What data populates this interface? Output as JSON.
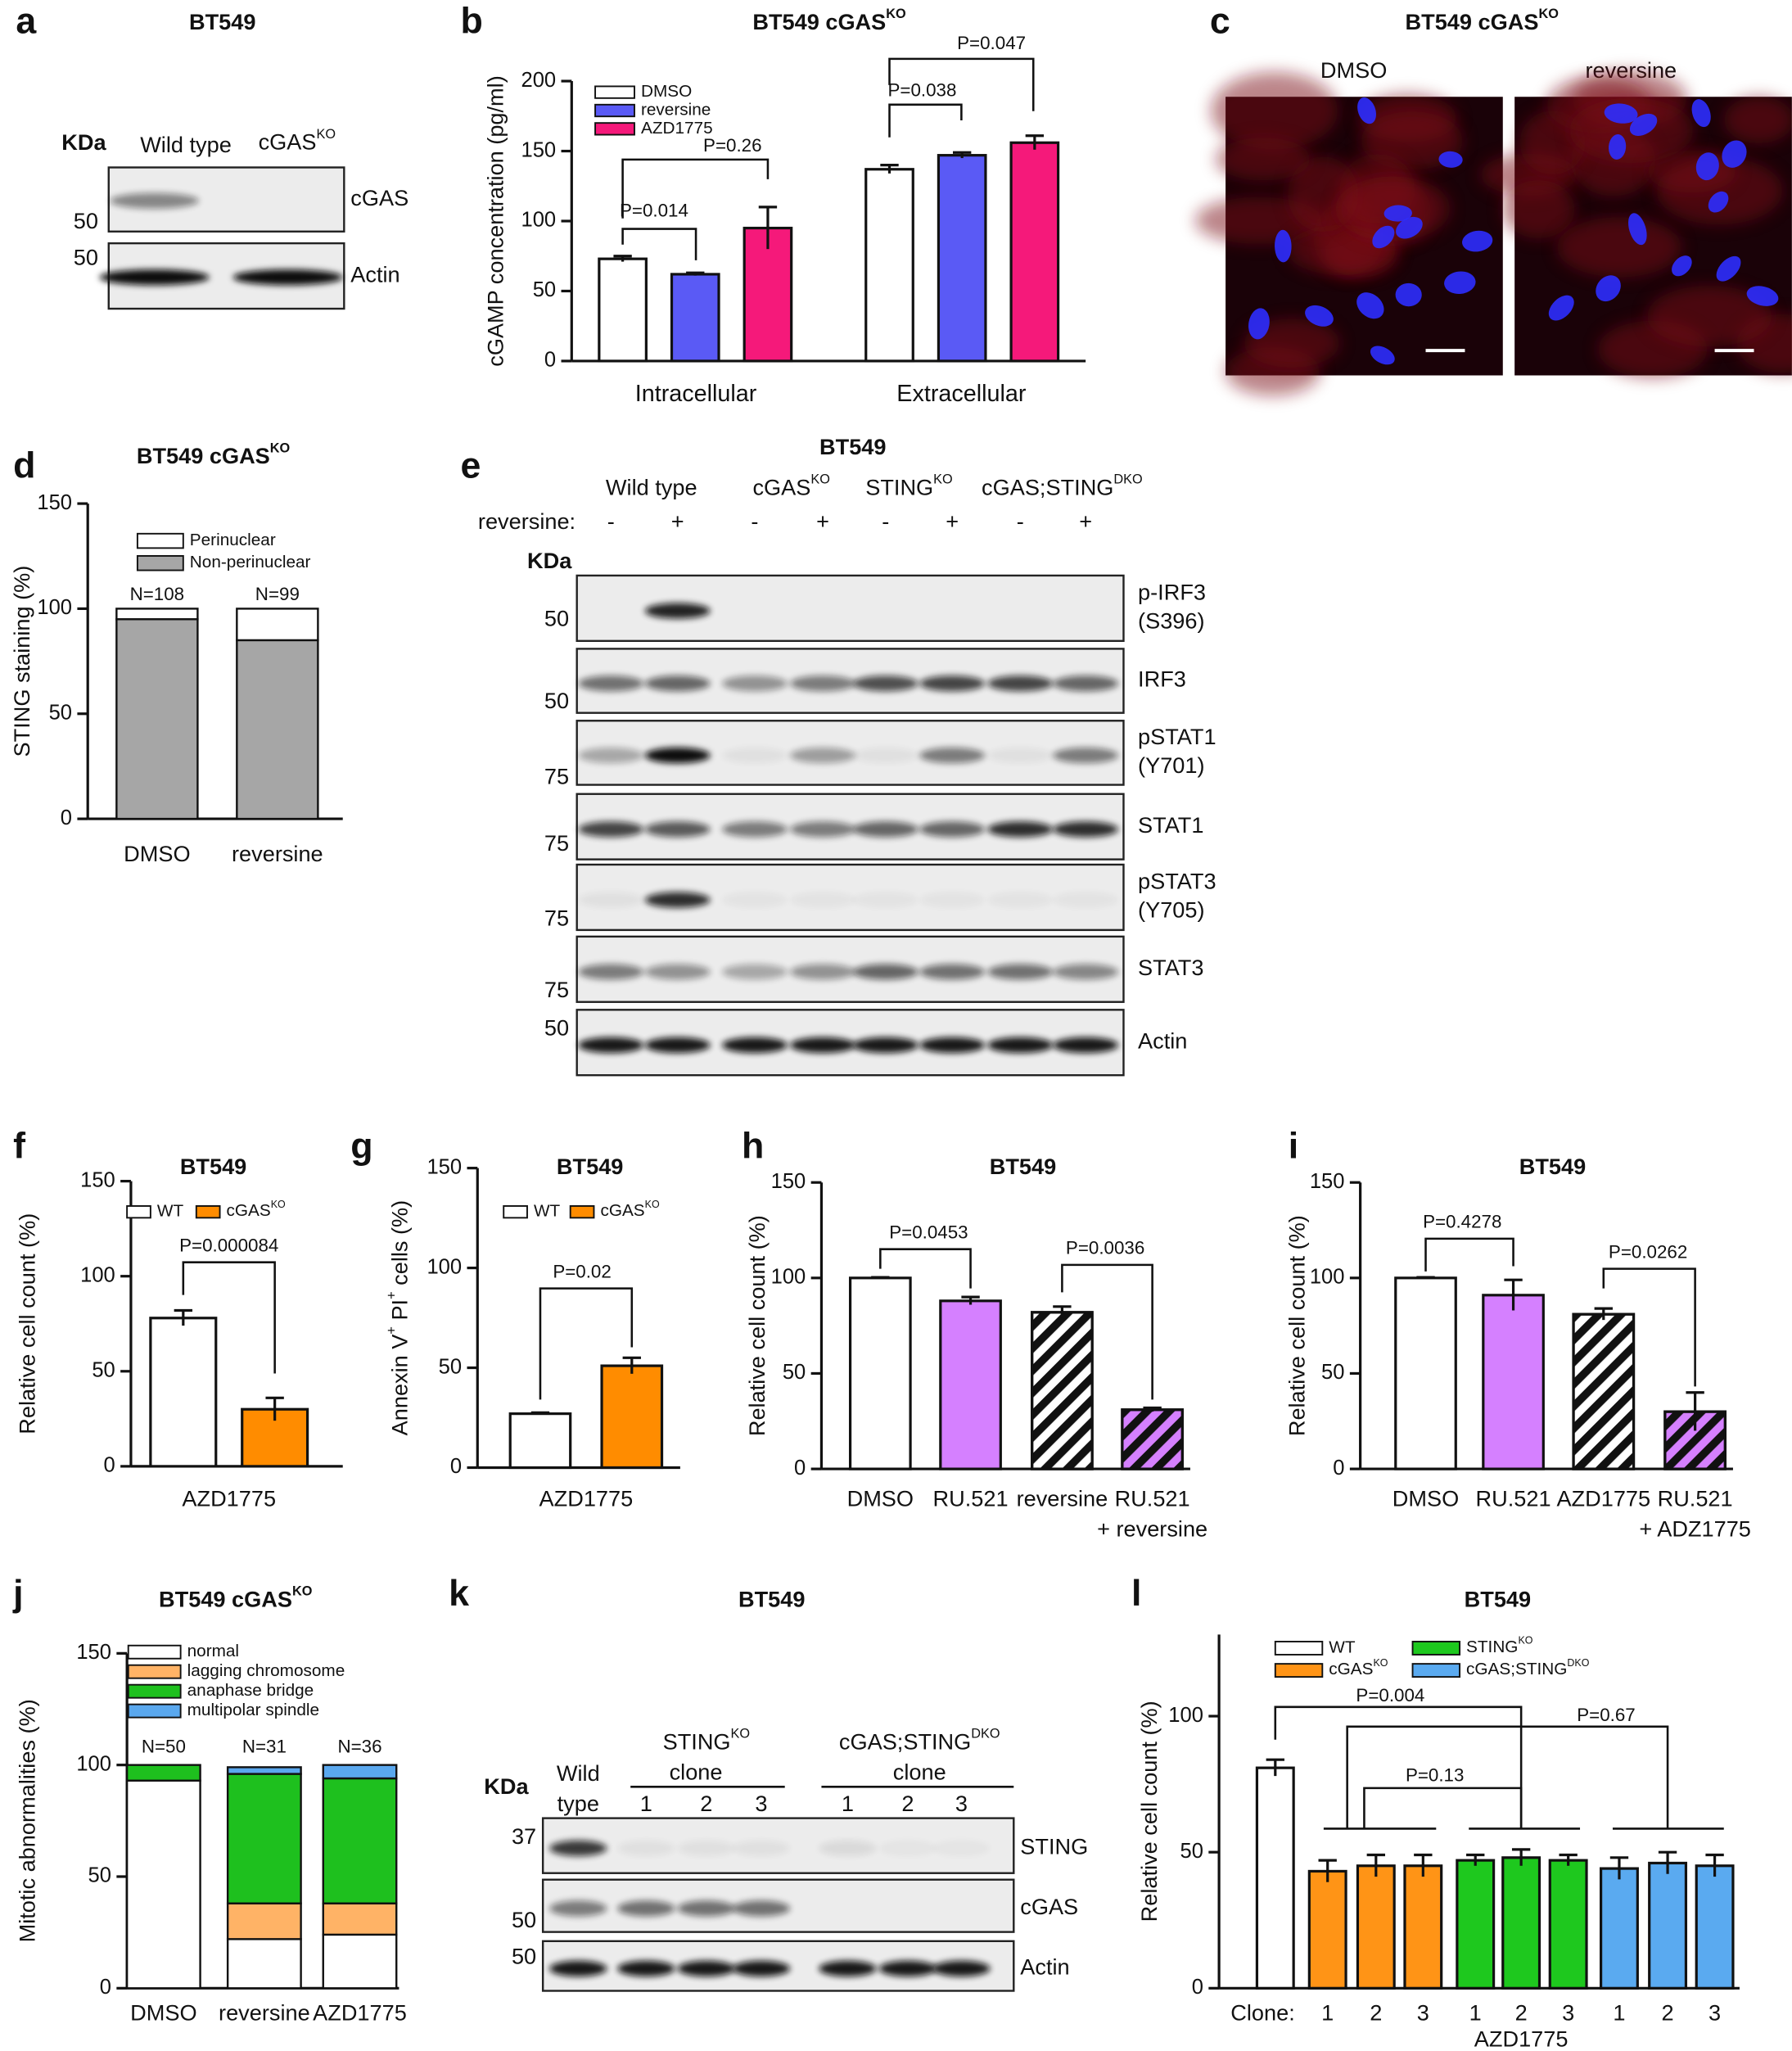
{
  "panel_labels": [
    "a",
    "b",
    "c",
    "d",
    "e",
    "f",
    "g",
    "h",
    "i",
    "j",
    "k",
    "l"
  ],
  "blots": [
    {
      "title": "BT549",
      "kda": "KDa",
      "lanes": [
        "Wild type",
        [
          "cGAS",
          "KO"
        ]
      ],
      "rows": [
        {
          "marker": "50",
          "label": [
            "cGAS"
          ]
        },
        {
          "marker": "50",
          "label": [
            "Actin"
          ]
        }
      ]
    },
    {
      "title": "BT549",
      "kda": "KDa",
      "treatment": "reversine:",
      "groups": [
        "Wild type",
        [
          "cGAS",
          "KO"
        ],
        [
          "STING",
          "KO"
        ],
        [
          "cGAS;STING",
          "DKO"
        ]
      ],
      "signs": [
        "-",
        "+",
        "-",
        "+",
        "-",
        "+",
        "-",
        "+"
      ],
      "rows": [
        {
          "marker": "50",
          "label": [
            "p-IRF3",
            "(S396)"
          ]
        },
        {
          "marker": "50",
          "label": [
            "IRF3"
          ]
        },
        {
          "marker": "75",
          "label": [
            "pSTAT1",
            "(Y701)"
          ]
        },
        {
          "marker": "75",
          "label": [
            "STAT1"
          ]
        },
        {
          "marker": "75",
          "label": [
            "pSTAT3",
            "(Y705)"
          ]
        },
        {
          "marker": "75",
          "label": [
            "STAT3"
          ]
        },
        {
          "marker": "50",
          "label": [
            "Actin"
          ]
        }
      ]
    },
    {
      "title": "BT549",
      "kda": "KDa",
      "wild": [
        "Wild",
        "type"
      ],
      "groups": [
        {
          "name": [
            "STING",
            "KO"
          ],
          "sub": "clone",
          "clones": [
            "1",
            "2",
            "3"
          ]
        },
        {
          "name": [
            "cGAS;STING",
            "DKO"
          ],
          "sub": "clone",
          "clones": [
            "1",
            "2",
            "3"
          ]
        }
      ],
      "rows": [
        {
          "marker": "37",
          "label": [
            "STING"
          ]
        },
        {
          "marker": "50",
          "label": [
            "cGAS"
          ]
        },
        {
          "marker": "50",
          "label": [
            "Actin"
          ]
        }
      ]
    }
  ],
  "images": {
    "title": [
      "BT549 cGAS",
      "KO"
    ],
    "panels": [
      "DMSO",
      "reversine"
    ]
  },
  "chart_data": [
    {
      "type": "bar",
      "title": [
        "BT549 cGAS",
        "KO"
      ],
      "ylabel": "cGAMP concentration (pg/ml)",
      "categories": [
        "Intracellular",
        "Extracellular"
      ],
      "series": [
        {
          "name": "DMSO",
          "color": "#ffffff",
          "values": [
            73,
            137
          ],
          "errors": [
            2,
            3
          ]
        },
        {
          "name": "reversine",
          "color": "#5a5af5",
          "values": [
            62,
            147
          ],
          "errors": [
            1,
            2
          ]
        },
        {
          "name": "AZD1775",
          "color": "#f5197a",
          "values": [
            95,
            156
          ],
          "errors": [
            15,
            5
          ]
        }
      ],
      "ylim": [
        0,
        200
      ],
      "yticks": [
        0,
        50,
        100,
        150,
        200
      ],
      "annotations": [
        "P=0.014",
        "P=0.26",
        "P=0.038",
        "P=0.047"
      ]
    },
    {
      "type": "stacked_bar",
      "title": [
        "BT549 cGAS",
        "KO"
      ],
      "ylabel": "STING staining (%)",
      "categories": [
        "DMSO",
        "reversine"
      ],
      "series": [
        {
          "name": "Non-perinuclear",
          "color": "#a6a6a6",
          "values": [
            95,
            85
          ]
        },
        {
          "name": "Perinuclear",
          "color": "#ffffff",
          "values": [
            5,
            15
          ]
        }
      ],
      "ylim": [
        0,
        150
      ],
      "yticks": [
        0,
        50,
        100,
        150
      ],
      "annotations": [
        "N=108",
        "N=99"
      ]
    },
    {
      "type": "bar",
      "title": "BT549",
      "ylabel": "Relative cell count (%)",
      "categories": [
        "AZD1775"
      ],
      "series": [
        {
          "name": "WT",
          "color": "#ffffff",
          "values": [
            78
          ],
          "errors": [
            4
          ]
        },
        {
          "name": [
            "cGAS",
            "KO"
          ],
          "color": "#ff8c00",
          "values": [
            30
          ],
          "errors": [
            6
          ]
        }
      ],
      "ylim": [
        0,
        150
      ],
      "yticks": [
        0,
        50,
        100,
        150
      ],
      "annotations": [
        "P=0.000084"
      ]
    },
    {
      "type": "bar",
      "title": "BT549",
      "ylabel": [
        "Annexin V",
        "+",
        " PI",
        "+",
        " cells (%)"
      ],
      "categories": [
        "AZD1775"
      ],
      "series": [
        {
          "name": "WT",
          "color": "#ffffff",
          "values": [
            27
          ],
          "errors": [
            0.5
          ]
        },
        {
          "name": [
            "cGAS",
            "KO"
          ],
          "color": "#ff8c00",
          "values": [
            51
          ],
          "errors": [
            4
          ]
        }
      ],
      "ylim": [
        0,
        150
      ],
      "yticks": [
        0,
        50,
        100,
        150
      ],
      "annotations": [
        "P=0.02"
      ]
    },
    {
      "type": "bar",
      "title": "BT549",
      "ylabel": "Relative cell count (%)",
      "categories": [
        "DMSO",
        "RU.521",
        "reversine",
        [
          "RU.521",
          "+ reversine"
        ]
      ],
      "values": [
        100,
        88,
        82,
        31
      ],
      "errors": [
        0.3,
        2,
        3,
        1
      ],
      "colors": [
        "#ffffff",
        "#d580ff",
        "#ffffff",
        "#d580ff"
      ],
      "hatch": [
        false,
        false,
        true,
        true
      ],
      "ylim": [
        0,
        150
      ],
      "yticks": [
        0,
        50,
        100,
        150
      ],
      "annotations": [
        "P=0.0453",
        "P=0.0036"
      ]
    },
    {
      "type": "bar",
      "title": "BT549",
      "ylabel": "Relative cell count (%)",
      "categories": [
        "DMSO",
        "RU.521",
        "AZD1775",
        [
          "RU.521",
          "+ ADZ1775"
        ]
      ],
      "values": [
        100,
        91,
        81,
        30
      ],
      "errors": [
        0.3,
        8,
        3,
        10
      ],
      "colors": [
        "#ffffff",
        "#d580ff",
        "#ffffff",
        "#d580ff"
      ],
      "hatch": [
        false,
        false,
        true,
        true
      ],
      "ylim": [
        0,
        150
      ],
      "yticks": [
        0,
        50,
        100,
        150
      ],
      "annotations": [
        "P=0.4278",
        "P=0.0262"
      ]
    },
    {
      "type": "stacked_bar",
      "title": [
        "BT549 cGAS",
        "KO"
      ],
      "ylabel": "Mitotic abnormalities (%)",
      "categories": [
        "DMSO",
        "reversine",
        "AZD1775"
      ],
      "series": [
        {
          "name": "normal",
          "color": "#ffffff",
          "values": [
            93,
            22,
            24
          ]
        },
        {
          "name": "lagging chromosome",
          "color": "#ffb366",
          "values": [
            0,
            16,
            14
          ]
        },
        {
          "name": "anaphase bridge",
          "color": "#1ec01e",
          "values": [
            7,
            58,
            56
          ]
        },
        {
          "name": "multipolar spindle",
          "color": "#5aa8ee",
          "values": [
            0,
            3,
            6
          ]
        }
      ],
      "ylim": [
        0,
        150
      ],
      "yticks": [
        0,
        50,
        100,
        150
      ],
      "annotations": [
        "N=50",
        "N=31",
        "N=36"
      ]
    },
    {
      "type": "bar",
      "title": "BT549",
      "ylabel": "Relative cell count (%)",
      "categories": [
        null,
        "1",
        "2",
        "3",
        "1",
        "2",
        "3",
        "1",
        "2",
        "3"
      ],
      "xlabel_prefix": "Clone:",
      "xlabel": "AZD1775",
      "series": [
        {
          "name": "WT",
          "color": "#ffffff",
          "values": [
            81,
            null,
            null,
            null,
            null,
            null,
            null,
            null,
            null,
            null
          ],
          "errors": [
            3,
            null,
            null,
            null,
            null,
            null,
            null,
            null,
            null,
            null
          ]
        },
        {
          "name": [
            "cGAS",
            "KO"
          ],
          "color": "#ff9416",
          "values": [
            null,
            43,
            45,
            45,
            null,
            null,
            null,
            null,
            null,
            null
          ],
          "errors": [
            null,
            4,
            4,
            4,
            null,
            null,
            null,
            null,
            null,
            null
          ]
        },
        {
          "name": [
            "STING",
            "KO"
          ],
          "color": "#1ec81e",
          "values": [
            null,
            null,
            null,
            null,
            47,
            48,
            47,
            null,
            null,
            null
          ],
          "errors": [
            null,
            null,
            null,
            null,
            2,
            3,
            2,
            null,
            null,
            null
          ]
        },
        {
          "name": [
            "cGAS;STING",
            "DKO"
          ],
          "color": "#5aaaf0",
          "values": [
            null,
            null,
            null,
            null,
            null,
            null,
            null,
            44,
            46,
            45
          ],
          "errors": [
            null,
            null,
            null,
            null,
            null,
            null,
            null,
            4,
            4,
            4
          ]
        }
      ],
      "ylim": [
        0,
        130
      ],
      "yticks": [
        0,
        50,
        100
      ],
      "annotations": [
        "P=0.004",
        "P=0.13",
        "P=0.67"
      ]
    }
  ]
}
